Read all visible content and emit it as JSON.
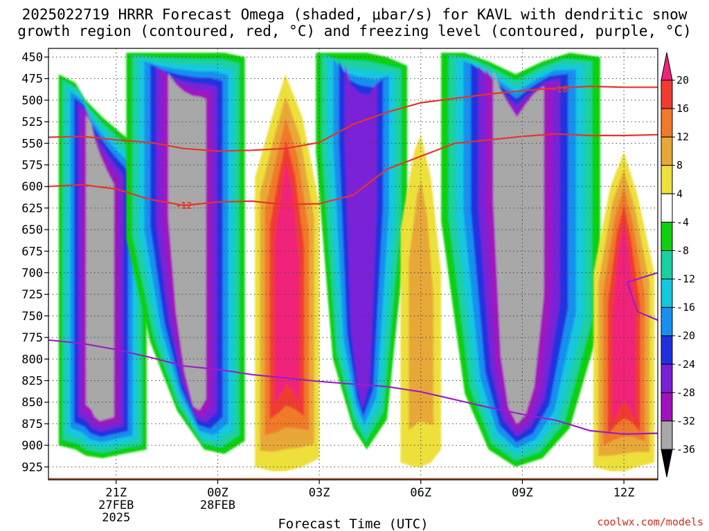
{
  "title": {
    "line1": "2025022719 HRRR Forecast Omega (shaded, μbar/s) for KAVL with dendritic snow",
    "line2": "growth region (contoured, red, °C) and freezing level (contoured, purple, °C)"
  },
  "credit": "coolwx.com/models",
  "chart_data": {
    "type": "heatmap",
    "title": "2025022719 HRRR Forecast Omega (shaded, μbar/s) for KAVL with dendritic snow growth region (contoured, red, °C) and freezing level (contoured, purple, °C)",
    "xlabel": "Forecast Time (UTC)",
    "ylabel": "",
    "x_units": "hours since 2025-02-27 19Z",
    "xlim": [
      0,
      18
    ],
    "x_ticks": [
      {
        "x": 2,
        "lines": [
          "21Z",
          "27FEB",
          "2025"
        ]
      },
      {
        "x": 5,
        "lines": [
          "00Z",
          "28FEB"
        ]
      },
      {
        "x": 8,
        "lines": [
          "03Z"
        ]
      },
      {
        "x": 11,
        "lines": [
          "06Z"
        ]
      },
      {
        "x": 14,
        "lines": [
          "09Z"
        ]
      },
      {
        "x": 17,
        "lines": [
          "12Z"
        ]
      }
    ],
    "y_units": "hPa",
    "ylim": [
      940,
      440
    ],
    "y_ticks": [
      450,
      475,
      500,
      525,
      550,
      575,
      600,
      625,
      650,
      675,
      700,
      725,
      750,
      775,
      800,
      825,
      850,
      875,
      900,
      925
    ],
    "grid": true,
    "colorbar": {
      "labels": [
        20,
        16,
        12,
        8,
        4,
        -4,
        -8,
        -12,
        -16,
        -20,
        -24,
        -28,
        -32,
        -36
      ],
      "bins": [
        {
          "range": "> 20",
          "color": "#f0237a"
        },
        {
          "range": "16 to 20",
          "color": "#f03b30"
        },
        {
          "range": "12 to 16",
          "color": "#f07a2a"
        },
        {
          "range": "8 to 12",
          "color": "#e8a838"
        },
        {
          "range": "4 to 8",
          "color": "#ede03a"
        },
        {
          "range": "-4 to 4",
          "color": "#ffffff"
        },
        {
          "range": "-8 to -4",
          "color": "#10d010"
        },
        {
          "range": "-12 to -8",
          "color": "#1ad0a0"
        },
        {
          "range": "-16 to -12",
          "color": "#12c8de"
        },
        {
          "range": "-20 to -16",
          "color": "#1890f0"
        },
        {
          "range": "-24 to -20",
          "color": "#2030e0"
        },
        {
          "range": "-28 to -24",
          "color": "#7a20d8"
        },
        {
          "range": "-32 to -28",
          "color": "#a012c0"
        },
        {
          "range": "-36 to -32",
          "color": "#a8a8a8"
        },
        {
          "range": "< -36",
          "color": "#000000"
        }
      ]
    },
    "omega_regions": [
      {
        "name": "rising 20Z-22Z",
        "peak": -36,
        "xc": 1.6,
        "x_halfwidth": 1.3,
        "p_top": 470,
        "p_bottom": 915,
        "columns": [
          [
            0.3,
            470,
            900
          ],
          [
            0.8,
            480,
            905
          ],
          [
            1.1,
            500,
            912
          ],
          [
            1.6,
            520,
            915
          ],
          [
            2.2,
            540,
            910
          ],
          [
            2.9,
            560,
            905
          ]
        ]
      },
      {
        "name": "rising 22Z-01Z",
        "peak": -36,
        "xc": 4.3,
        "x_halfwidth": 1.9,
        "p_top": 445,
        "p_bottom": 915,
        "columns": [
          [
            2.3,
            445,
            660
          ],
          [
            3.0,
            445,
            780
          ],
          [
            3.8,
            445,
            860
          ],
          [
            4.6,
            445,
            905
          ],
          [
            5.2,
            445,
            910
          ],
          [
            5.8,
            450,
            895
          ]
        ]
      },
      {
        "name": "sinking 02Z",
        "peak": 22,
        "xc": 7.0,
        "x_halfwidth": 1.2,
        "p_top": 470,
        "p_bottom": 930,
        "columns": [
          [
            6.1,
            590,
            925
          ],
          [
            6.6,
            520,
            930
          ],
          [
            7.0,
            470,
            930
          ],
          [
            7.5,
            520,
            925
          ],
          [
            8.0,
            620,
            915
          ]
        ]
      },
      {
        "name": "rising 03Z-05Z",
        "peak": -28,
        "xc": 8.9,
        "x_halfwidth": 1.6,
        "p_top": 445,
        "p_bottom": 905,
        "columns": [
          [
            7.9,
            445,
            560
          ],
          [
            8.4,
            445,
            800
          ],
          [
            9.0,
            445,
            880
          ],
          [
            9.4,
            445,
            905
          ],
          [
            10.0,
            450,
            870
          ],
          [
            10.6,
            460,
            640
          ]
        ]
      },
      {
        "name": "sinking 06Z",
        "peak": 10,
        "xc": 11.0,
        "x_halfwidth": 0.7,
        "p_top": 540,
        "p_bottom": 925,
        "columns": [
          [
            10.4,
            650,
            920
          ],
          [
            10.8,
            560,
            925
          ],
          [
            11.0,
            540,
            925
          ],
          [
            11.3,
            590,
            920
          ],
          [
            11.6,
            700,
            905
          ]
        ]
      },
      {
        "name": "rising 07Z-10Z",
        "peak": -36,
        "xc": 13.8,
        "x_halfwidth": 1.6,
        "p_top": 445,
        "p_bottom": 930,
        "columns": [
          [
            11.6,
            445,
            640
          ],
          [
            12.3,
            445,
            840
          ],
          [
            13.0,
            455,
            905
          ],
          [
            13.8,
            470,
            925
          ],
          [
            14.6,
            455,
            915
          ],
          [
            15.4,
            445,
            880
          ],
          [
            16.3,
            450,
            760
          ]
        ]
      },
      {
        "name": "sinking 12Z",
        "peak": 22,
        "xc": 17.0,
        "x_halfwidth": 0.9,
        "p_top": 560,
        "p_bottom": 930,
        "columns": [
          [
            16.1,
            700,
            925
          ],
          [
            16.6,
            600,
            930
          ],
          [
            17.0,
            560,
            930
          ],
          [
            17.4,
            610,
            925
          ],
          [
            17.9,
            700,
            920
          ]
        ]
      }
    ],
    "series": [
      {
        "name": "-12",
        "color": "#e8332a",
        "points": [
          [
            0,
            600
          ],
          [
            1,
            598
          ],
          [
            2,
            603
          ],
          [
            3,
            615
          ],
          [
            4,
            622
          ],
          [
            5,
            618
          ],
          [
            6,
            617
          ],
          [
            7,
            621
          ],
          [
            8,
            620
          ],
          [
            9,
            610
          ],
          [
            10,
            580
          ],
          [
            11,
            565
          ],
          [
            12,
            550
          ],
          [
            13,
            546
          ],
          [
            14,
            542
          ],
          [
            15,
            539
          ],
          [
            16,
            541
          ],
          [
            17,
            541
          ],
          [
            18,
            540
          ]
        ]
      },
      {
        "name": "",
        "color": "#e8332a",
        "points": [
          [
            0,
            543
          ],
          [
            1,
            542
          ],
          [
            2,
            546
          ],
          [
            3,
            549
          ],
          [
            4,
            556
          ],
          [
            5,
            559
          ],
          [
            6,
            558
          ],
          [
            7,
            556
          ],
          [
            8,
            549
          ],
          [
            9,
            528
          ],
          [
            10,
            514
          ],
          [
            11,
            503
          ],
          [
            12,
            498
          ],
          [
            13,
            493
          ],
          [
            14,
            489
          ],
          [
            15,
            486
          ],
          [
            16,
            484
          ],
          [
            17,
            485
          ],
          [
            18,
            485
          ]
        ]
      },
      {
        "name": "-18",
        "color": "#e8332a",
        "points": [
          [
            0,
            543
          ],
          [
            1,
            542
          ],
          [
            2,
            546
          ],
          [
            3,
            549
          ],
          [
            4,
            556
          ],
          [
            5,
            559
          ],
          [
            6,
            558
          ],
          [
            7,
            556
          ],
          [
            8,
            549
          ],
          [
            9,
            528
          ],
          [
            10,
            514
          ],
          [
            11,
            503
          ],
          [
            12,
            498
          ],
          [
            13,
            493
          ],
          [
            14,
            489
          ],
          [
            15,
            486
          ],
          [
            16,
            484
          ],
          [
            17,
            485
          ],
          [
            18,
            485
          ]
        ]
      },
      {
        "name": "",
        "color": "#9a1ec8",
        "points": [
          [
            0,
            778
          ],
          [
            1,
            782
          ],
          [
            2,
            789
          ],
          [
            3,
            798
          ],
          [
            4,
            808
          ],
          [
            5,
            812
          ],
          [
            6,
            818
          ],
          [
            7,
            822
          ],
          [
            8,
            826
          ],
          [
            9,
            829
          ],
          [
            10,
            832
          ],
          [
            11,
            838
          ],
          [
            12,
            847
          ],
          [
            13,
            856
          ],
          [
            14,
            864
          ],
          [
            15,
            871
          ],
          [
            16,
            883
          ],
          [
            17,
            887
          ],
          [
            18,
            886
          ]
        ]
      },
      {
        "name": "",
        "color": "#9a1ec8",
        "points": [
          [
            17.1,
            711
          ],
          [
            17.4,
            745
          ],
          [
            18,
            755
          ]
        ]
      },
      {
        "name": "",
        "color": "#9a1ec8",
        "points": [
          [
            17.1,
            711
          ],
          [
            18,
            700
          ]
        ]
      }
    ],
    "contour_labels": [
      {
        "text": "-12",
        "x": 4.0,
        "p": 622
      },
      {
        "text": "-18",
        "x": 15.1,
        "p": 487
      }
    ],
    "terrain_band": {
      "color": "#a0522d",
      "p_top": 938
    }
  }
}
